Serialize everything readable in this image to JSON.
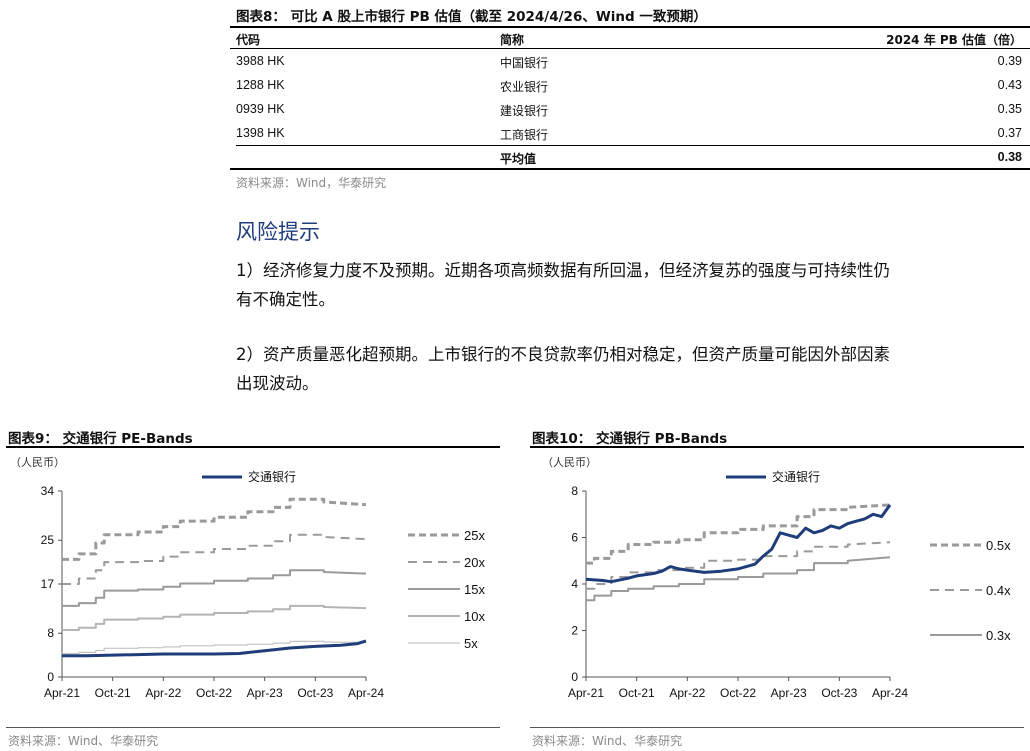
{
  "table": {
    "title": "图表8： 可比 A 股上市银行 PB 估值（截至 2024/4/26、Wind 一致预期）",
    "headers": {
      "code": "代码",
      "name": "简称",
      "pb": "2024 年 PB 估值（倍）"
    },
    "rows": [
      {
        "code": "3988 HK",
        "name": "中国银行",
        "pb": "0.39"
      },
      {
        "code": "1288 HK",
        "name": "农业银行",
        "pb": "0.43"
      },
      {
        "code": "0939 HK",
        "name": "建设银行",
        "pb": "0.35"
      },
      {
        "code": "1398 HK",
        "name": "工商银行",
        "pb": "0.37"
      }
    ],
    "avg_label": "平均值",
    "avg_value": "0.38",
    "source": "资料来源：Wind，华泰研究"
  },
  "risk": {
    "heading": "风险提示",
    "p1_line1": "1）经济修复力度不及预期。近期各项高频数据有所回温，但经济复苏的强度与可持续性仍",
    "p1_line2": "有不确定性。",
    "p2_line1": "2）资产质量恶化超预期。上市银行的不良贷款率仍相对稳定，但资产质量可能因外部因素",
    "p2_line2": "出现波动。"
  },
  "chart_data": [
    {
      "type": "line",
      "title": "图表9： 交通银行 PE-Bands",
      "unit": "（人民币）",
      "x_ticks": [
        "Apr-21",
        "Oct-21",
        "Apr-22",
        "Oct-22",
        "Apr-23",
        "Oct-23",
        "Apr-24"
      ],
      "x_range": [
        "2021-04",
        "2024-04"
      ],
      "ylim": [
        0,
        34
      ],
      "y_ticks": [
        "0",
        "8",
        "17",
        "25",
        "34"
      ],
      "series": [
        {
          "name": "交通银行",
          "color": "#1f3d7a",
          "style": "solid-thick",
          "points": [
            [
              0,
              3.9
            ],
            [
              3,
              3.9
            ],
            [
              6,
              4.0
            ],
            [
              9,
              4.1
            ],
            [
              12,
              4.2
            ],
            [
              15,
              4.2
            ],
            [
              18,
              4.2
            ],
            [
              21,
              4.3
            ],
            [
              24,
              4.8
            ],
            [
              27,
              5.3
            ],
            [
              30,
              5.6
            ],
            [
              33,
              5.8
            ],
            [
              35,
              6.1
            ],
            [
              36,
              6.6
            ]
          ]
        },
        {
          "name": "25x",
          "color": "#9a9a9a",
          "style": "dash-thick",
          "points": [
            [
              0,
              21.5
            ],
            [
              2,
              21.5
            ],
            [
              2,
              22.5
            ],
            [
              4,
              22.5
            ],
            [
              4,
              24.5
            ],
            [
              5,
              24.5
            ],
            [
              5,
              26
            ],
            [
              9,
              26
            ],
            [
              9,
              26.5
            ],
            [
              12,
              26.5
            ],
            [
              12,
              27.5
            ],
            [
              14,
              27.5
            ],
            [
              14,
              28.5
            ],
            [
              18,
              28.5
            ],
            [
              18,
              29.2
            ],
            [
              22,
              29.2
            ],
            [
              22,
              30.2
            ],
            [
              25,
              30.2
            ],
            [
              25,
              31
            ],
            [
              27,
              31
            ],
            [
              27,
              32.5
            ],
            [
              31,
              32.5
            ],
            [
              31,
              32
            ],
            [
              36,
              31.5
            ]
          ]
        },
        {
          "name": "20x",
          "color": "#9a9a9a",
          "style": "dash",
          "points": [
            [
              0,
              17
            ],
            [
              2,
              17
            ],
            [
              2,
              18
            ],
            [
              4,
              18
            ],
            [
              4,
              19.5
            ],
            [
              5,
              19.5
            ],
            [
              5,
              21
            ],
            [
              9,
              21
            ],
            [
              9,
              21.2
            ],
            [
              12,
              21.2
            ],
            [
              12,
              22
            ],
            [
              14,
              22
            ],
            [
              14,
              22.8
            ],
            [
              18,
              22.8
            ],
            [
              18,
              23.4
            ],
            [
              22,
              23.4
            ],
            [
              22,
              24
            ],
            [
              25,
              24
            ],
            [
              25,
              24.8
            ],
            [
              27,
              24.8
            ],
            [
              27,
              26
            ],
            [
              31,
              26
            ],
            [
              31,
              25.6
            ],
            [
              36,
              25.2
            ]
          ]
        },
        {
          "name": "15x",
          "color": "#9a9a9a",
          "style": "solid",
          "points": [
            [
              0,
              13
            ],
            [
              2,
              13
            ],
            [
              2,
              13.5
            ],
            [
              4,
              13.5
            ],
            [
              4,
              14.5
            ],
            [
              5,
              14.5
            ],
            [
              5,
              15.8
            ],
            [
              9,
              15.8
            ],
            [
              9,
              16
            ],
            [
              12,
              16
            ],
            [
              12,
              16.5
            ],
            [
              14,
              16.5
            ],
            [
              14,
              17.1
            ],
            [
              18,
              17.1
            ],
            [
              18,
              17.6
            ],
            [
              22,
              17.6
            ],
            [
              22,
              18
            ],
            [
              25,
              18
            ],
            [
              25,
              18.6
            ],
            [
              27,
              18.6
            ],
            [
              27,
              19.5
            ],
            [
              31,
              19.5
            ],
            [
              31,
              19.2
            ],
            [
              36,
              18.9
            ]
          ]
        },
        {
          "name": "10x",
          "color": "#b4b4b4",
          "style": "solid",
          "points": [
            [
              0,
              8.6
            ],
            [
              2,
              8.6
            ],
            [
              2,
              9
            ],
            [
              4,
              9
            ],
            [
              4,
              9.7
            ],
            [
              5,
              9.7
            ],
            [
              5,
              10.5
            ],
            [
              9,
              10.5
            ],
            [
              9,
              10.7
            ],
            [
              12,
              10.7
            ],
            [
              12,
              11
            ],
            [
              14,
              11
            ],
            [
              14,
              11.4
            ],
            [
              18,
              11.4
            ],
            [
              18,
              11.7
            ],
            [
              22,
              11.7
            ],
            [
              22,
              12
            ],
            [
              25,
              12
            ],
            [
              25,
              12.4
            ],
            [
              27,
              12.4
            ],
            [
              27,
              13
            ],
            [
              31,
              13
            ],
            [
              31,
              12.8
            ],
            [
              36,
              12.6
            ]
          ]
        },
        {
          "name": "5x",
          "color": "#c4c4c4",
          "style": "solid-thin",
          "points": [
            [
              0,
              4.3
            ],
            [
              2,
              4.3
            ],
            [
              2,
              4.5
            ],
            [
              4,
              4.5
            ],
            [
              4,
              4.85
            ],
            [
              5,
              4.85
            ],
            [
              5,
              5.25
            ],
            [
              9,
              5.25
            ],
            [
              9,
              5.35
            ],
            [
              12,
              5.35
            ],
            [
              12,
              5.5
            ],
            [
              14,
              5.5
            ],
            [
              14,
              5.7
            ],
            [
              18,
              5.7
            ],
            [
              18,
              5.85
            ],
            [
              22,
              5.85
            ],
            [
              22,
              6
            ],
            [
              25,
              6
            ],
            [
              25,
              6.2
            ],
            [
              27,
              6.2
            ],
            [
              27,
              6.5
            ],
            [
              31,
              6.5
            ],
            [
              31,
              6.4
            ],
            [
              36,
              6.3
            ]
          ]
        }
      ],
      "source": "资料来源：Wind、华泰研究"
    },
    {
      "type": "line",
      "title": "图表10： 交通银行 PB-Bands",
      "unit": "（人民币）",
      "x_ticks": [
        "Apr-21",
        "Oct-21",
        "Apr-22",
        "Oct-22",
        "Apr-23",
        "Oct-23",
        "Apr-24"
      ],
      "x_range": [
        "2021-04",
        "2024-04"
      ],
      "ylim": [
        0,
        8
      ],
      "y_ticks": [
        "0",
        "2",
        "4",
        "6",
        "8"
      ],
      "series": [
        {
          "name": "交通银行",
          "color": "#1f3d7a",
          "style": "solid-thick",
          "points": [
            [
              0,
              4.2
            ],
            [
              2,
              4.15
            ],
            [
              3,
              4.1
            ],
            [
              5,
              4.25
            ],
            [
              6,
              4.35
            ],
            [
              8,
              4.45
            ],
            [
              9,
              4.55
            ],
            [
              10,
              4.75
            ],
            [
              11,
              4.65
            ],
            [
              12,
              4.6
            ],
            [
              14,
              4.5
            ],
            [
              16,
              4.55
            ],
            [
              18,
              4.65
            ],
            [
              19,
              4.75
            ],
            [
              20,
              4.85
            ],
            [
              21,
              5.2
            ],
            [
              22,
              5.5
            ],
            [
              23,
              6.2
            ],
            [
              24,
              6.1
            ],
            [
              25,
              6.0
            ],
            [
              26,
              6.4
            ],
            [
              27,
              6.2
            ],
            [
              28,
              6.3
            ],
            [
              29,
              6.5
            ],
            [
              30,
              6.4
            ],
            [
              31,
              6.6
            ],
            [
              32,
              6.7
            ],
            [
              33,
              6.8
            ],
            [
              34,
              7.0
            ],
            [
              35,
              6.9
            ],
            [
              36,
              7.4
            ]
          ]
        },
        {
          "name": "0.5x",
          "color": "#9a9a9a",
          "style": "dash-thick",
          "points": [
            [
              0,
              4.9
            ],
            [
              1,
              4.9
            ],
            [
              1,
              5.1
            ],
            [
              3,
              5.1
            ],
            [
              3,
              5.4
            ],
            [
              5,
              5.4
            ],
            [
              5,
              5.7
            ],
            [
              8,
              5.7
            ],
            [
              8,
              5.8
            ],
            [
              11,
              5.8
            ],
            [
              11,
              5.9
            ],
            [
              14,
              5.9
            ],
            [
              14,
              6.2
            ],
            [
              18,
              6.2
            ],
            [
              18,
              6.35
            ],
            [
              21,
              6.35
            ],
            [
              21,
              6.5
            ],
            [
              25,
              6.5
            ],
            [
              25,
              6.9
            ],
            [
              27,
              6.9
            ],
            [
              27,
              7.2
            ],
            [
              31,
              7.2
            ],
            [
              31,
              7.3
            ],
            [
              36,
              7.4
            ]
          ]
        },
        {
          "name": "0.4x",
          "color": "#9a9a9a",
          "style": "dash",
          "points": [
            [
              0,
              3.8
            ],
            [
              1,
              3.8
            ],
            [
              1,
              4.0
            ],
            [
              3,
              4.0
            ],
            [
              3,
              4.3
            ],
            [
              5,
              4.3
            ],
            [
              5,
              4.5
            ],
            [
              8,
              4.5
            ],
            [
              8,
              4.6
            ],
            [
              11,
              4.6
            ],
            [
              11,
              4.7
            ],
            [
              14,
              4.7
            ],
            [
              14,
              5.0
            ],
            [
              18,
              5.0
            ],
            [
              18,
              5.05
            ],
            [
              21,
              5.05
            ],
            [
              21,
              5.2
            ],
            [
              25,
              5.2
            ],
            [
              25,
              5.4
            ],
            [
              27,
              5.4
            ],
            [
              27,
              5.6
            ],
            [
              31,
              5.6
            ],
            [
              31,
              5.7
            ],
            [
              36,
              5.8
            ]
          ]
        },
        {
          "name": "0.3x",
          "color": "#9a9a9a",
          "style": "solid",
          "points": [
            [
              0,
              3.3
            ],
            [
              1,
              3.3
            ],
            [
              1,
              3.5
            ],
            [
              3,
              3.5
            ],
            [
              3,
              3.7
            ],
            [
              5,
              3.7
            ],
            [
              5,
              3.8
            ],
            [
              8,
              3.8
            ],
            [
              8,
              3.9
            ],
            [
              11,
              3.9
            ],
            [
              11,
              4.0
            ],
            [
              14,
              4.0
            ],
            [
              14,
              4.2
            ],
            [
              18,
              4.2
            ],
            [
              18,
              4.3
            ],
            [
              21,
              4.3
            ],
            [
              21,
              4.45
            ],
            [
              25,
              4.45
            ],
            [
              25,
              4.6
            ],
            [
              27,
              4.6
            ],
            [
              27,
              4.9
            ],
            [
              31,
              4.9
            ],
            [
              31,
              5.0
            ],
            [
              36,
              5.15
            ]
          ]
        }
      ],
      "source": "资料来源：Wind、华泰研究"
    }
  ]
}
